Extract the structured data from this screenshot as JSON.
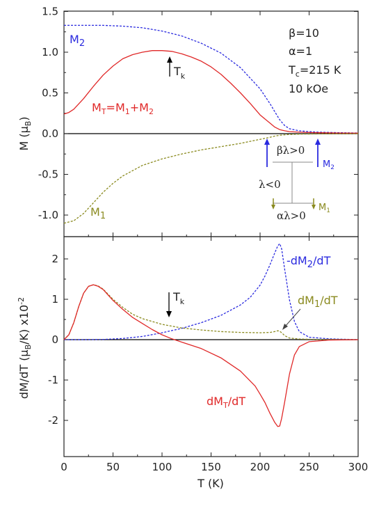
{
  "chart_data": [
    {
      "type": "line",
      "panel": "top",
      "xlabel": "",
      "ylabel": "M (μB)",
      "xlim": [
        0,
        300
      ],
      "ylim": [
        -1.2,
        1.5
      ],
      "x_ticks": [
        0,
        50,
        100,
        150,
        200,
        250,
        300
      ],
      "y_ticks": [
        "1.5",
        "1.0",
        "0.5",
        "0.0",
        "-0.5",
        "-1.0"
      ],
      "y_tick_values": [
        1.5,
        1.0,
        0.5,
        0.0,
        -0.5,
        -1.0
      ],
      "parameters": [
        "β=10",
        "α=1",
        "Tc=215 K",
        "10 kOe"
      ],
      "series": [
        {
          "name": "M2",
          "color": "#2a2adf",
          "style": "dashed",
          "x": [
            0,
            20,
            40,
            60,
            80,
            100,
            120,
            140,
            160,
            180,
            200,
            210,
            215,
            220,
            225,
            230,
            240,
            250,
            260,
            280,
            300
          ],
          "y": [
            1.33,
            1.33,
            1.33,
            1.32,
            1.3,
            1.26,
            1.2,
            1.11,
            0.99,
            0.81,
            0.55,
            0.37,
            0.27,
            0.17,
            0.1,
            0.06,
            0.035,
            0.025,
            0.018,
            0.012,
            0.008
          ]
        },
        {
          "name": "MT=M1+M2",
          "color": "#e02828",
          "style": "solid",
          "x": [
            0,
            5,
            10,
            20,
            30,
            40,
            50,
            60,
            70,
            80,
            90,
            100,
            110,
            120,
            130,
            140,
            150,
            160,
            170,
            180,
            190,
            200,
            210,
            215,
            220,
            225,
            230,
            240,
            250,
            260,
            280,
            300
          ],
          "y": [
            0.24,
            0.26,
            0.3,
            0.43,
            0.58,
            0.72,
            0.83,
            0.92,
            0.97,
            1.0,
            1.02,
            1.02,
            1.01,
            0.98,
            0.94,
            0.89,
            0.82,
            0.73,
            0.62,
            0.5,
            0.37,
            0.23,
            0.13,
            0.08,
            0.05,
            0.035,
            0.025,
            0.018,
            0.014,
            0.011,
            0.008,
            0.006
          ]
        },
        {
          "name": "M1",
          "color": "#8a8a1f",
          "style": "dashed",
          "x": [
            0,
            10,
            20,
            30,
            40,
            50,
            60,
            80,
            100,
            120,
            140,
            160,
            180,
            200,
            210,
            215,
            220,
            230,
            240,
            260,
            300
          ],
          "y": [
            -1.1,
            -1.07,
            -0.98,
            -0.85,
            -0.72,
            -0.61,
            -0.52,
            -0.39,
            -0.31,
            -0.25,
            -0.2,
            -0.16,
            -0.12,
            -0.07,
            -0.045,
            -0.03,
            -0.02,
            -0.01,
            -0.006,
            -0.003,
            -0.001
          ]
        }
      ],
      "annotations": [
        "Tk",
        "M2",
        "MT=M1+M2",
        "M1"
      ],
      "inset_labels": [
        "βλ>0",
        "λ<0",
        "αλ>0",
        "M2",
        "M1"
      ]
    },
    {
      "type": "line",
      "panel": "bottom",
      "xlabel": "T (K)",
      "ylabel": "dM/dT (μB/K) x10-2",
      "xlim": [
        0,
        300
      ],
      "ylim": [
        -2.6,
        2.6
      ],
      "x_ticks": [
        0,
        50,
        100,
        150,
        200,
        250,
        300
      ],
      "y_ticks": [
        "2",
        "1",
        "0",
        "-1",
        "-2"
      ],
      "y_tick_values": [
        2,
        1,
        0,
        -1,
        -2
      ],
      "series": [
        {
          "name": "-dM2/dT",
          "color": "#2a2adf",
          "style": "dashed",
          "x": [
            0,
            20,
            40,
            60,
            80,
            100,
            120,
            140,
            160,
            180,
            190,
            200,
            205,
            210,
            215,
            218,
            220,
            222,
            225,
            230,
            235,
            240,
            250,
            270,
            300
          ],
          "y": [
            0,
            0,
            0.005,
            0.03,
            0.08,
            0.17,
            0.28,
            0.42,
            0.6,
            0.86,
            1.05,
            1.35,
            1.58,
            1.85,
            2.15,
            2.32,
            2.38,
            2.25,
            1.75,
            0.98,
            0.45,
            0.2,
            0.06,
            0.02,
            0.0
          ]
        },
        {
          "name": "dM1/dT",
          "color": "#8a8a1f",
          "style": "dashed",
          "x": [
            0,
            5,
            10,
            15,
            20,
            25,
            30,
            35,
            40,
            50,
            60,
            70,
            80,
            100,
            120,
            140,
            160,
            180,
            200,
            210,
            215,
            218,
            220,
            223,
            225,
            230,
            240,
            260,
            300
          ],
          "y": [
            0,
            0.12,
            0.42,
            0.82,
            1.15,
            1.32,
            1.36,
            1.33,
            1.25,
            1.0,
            0.8,
            0.63,
            0.52,
            0.38,
            0.29,
            0.24,
            0.2,
            0.18,
            0.17,
            0.18,
            0.2,
            0.22,
            0.21,
            0.15,
            0.1,
            0.04,
            0.015,
            0.005,
            0.0
          ]
        },
        {
          "name": "dMT/dT",
          "color": "#e02828",
          "style": "solid",
          "x": [
            0,
            5,
            10,
            15,
            20,
            25,
            30,
            35,
            40,
            50,
            60,
            70,
            80,
            90,
            100,
            110,
            120,
            140,
            160,
            180,
            195,
            200,
            205,
            210,
            215,
            218,
            220,
            222,
            225,
            230,
            235,
            240,
            250,
            270,
            300
          ],
          "y": [
            0,
            0.12,
            0.42,
            0.82,
            1.15,
            1.32,
            1.36,
            1.32,
            1.24,
            0.97,
            0.75,
            0.55,
            0.4,
            0.25,
            0.12,
            0.02,
            -0.06,
            -0.22,
            -0.45,
            -0.78,
            -1.15,
            -1.35,
            -1.56,
            -1.82,
            -2.05,
            -2.15,
            -2.14,
            -1.95,
            -1.55,
            -0.85,
            -0.38,
            -0.17,
            -0.05,
            -0.01,
            0.0
          ]
        }
      ],
      "annotations": [
        "Tk",
        "-dM2/dT",
        "dM1/dT",
        "dMT/dT"
      ]
    }
  ]
}
